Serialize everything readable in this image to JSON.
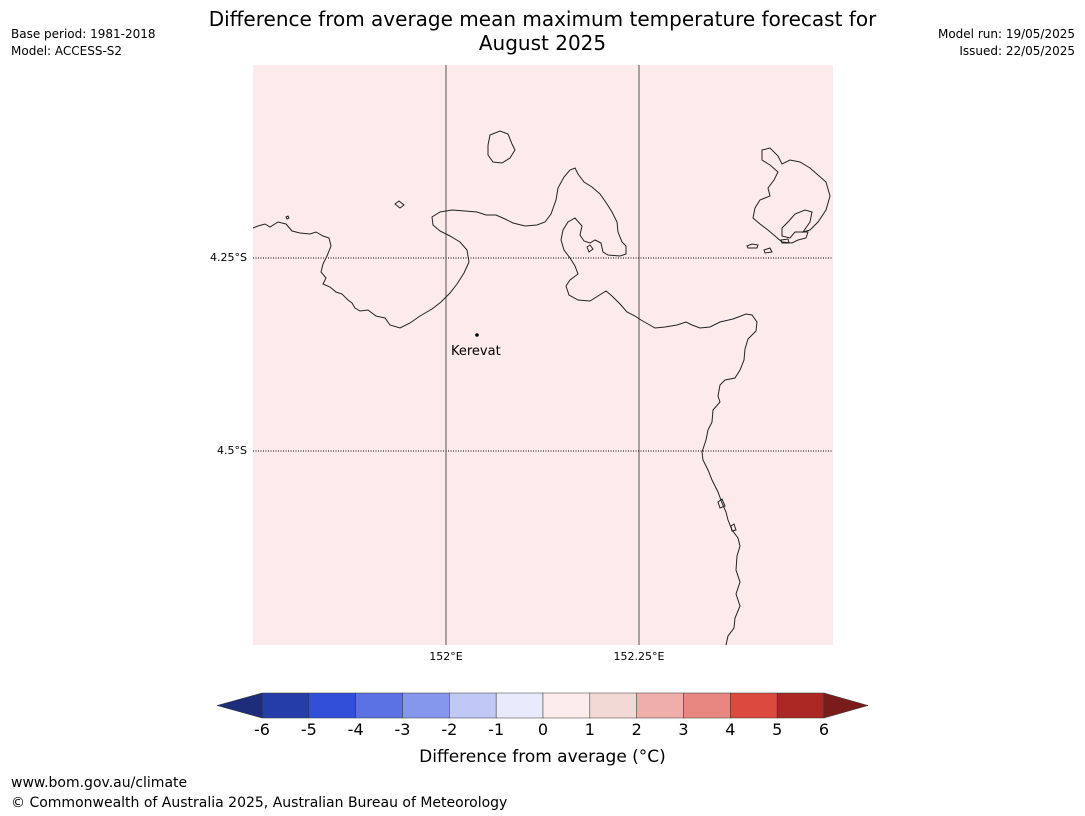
{
  "header": {
    "base_period": "Base period: 1981-2018",
    "model": "Model: ACCESS-S2",
    "title_line1": "Difference from average mean maximum temperature forecast for",
    "title_line2": "August 2025",
    "model_run": "Model run: 19/05/2025",
    "issued": "Issued: 22/05/2025"
  },
  "map": {
    "fill_color": "#fcebea",
    "coast_color": "#000000",
    "graticule_color": "#000000",
    "lat_labels": [
      "4.25°S",
      "4.5°S"
    ],
    "lon_labels": [
      "152°E",
      "152.25°E"
    ],
    "places": [
      {
        "name": "Kerevat",
        "lon": 152.04,
        "lat": -4.35
      }
    ]
  },
  "colorbar": {
    "ticks": [
      "-6",
      "-5",
      "-4",
      "-3",
      "-2",
      "-1",
      "0",
      "1",
      "2",
      "3",
      "4",
      "5",
      "6"
    ],
    "colors": [
      "#243da8",
      "#324fd9",
      "#5a72e3",
      "#8597ec",
      "#c0c8f5",
      "#e9ebfc",
      "#fdecec",
      "#f2d9d6",
      "#efaeaa",
      "#e88782",
      "#dc493f",
      "#aa2723"
    ],
    "under_color": "#1e2d7a",
    "over_color": "#7a1c19",
    "label": "Difference from average (°C)"
  },
  "footer": {
    "url": "www.bom.gov.au/climate",
    "copyright": "© Commonwealth of Australia 2025, Australian Bureau of Meteorology"
  }
}
